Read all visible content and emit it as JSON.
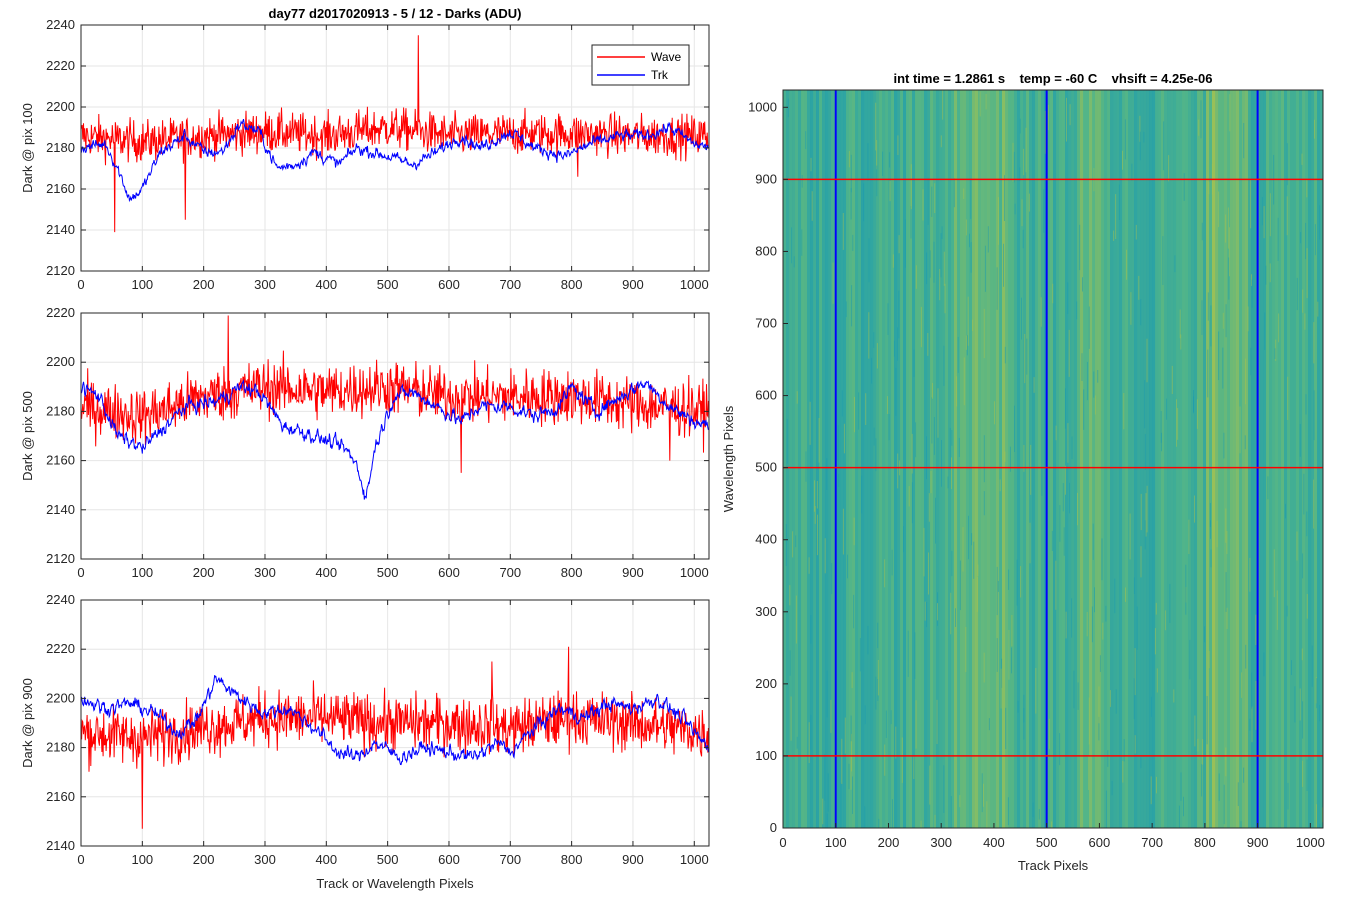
{
  "colors": {
    "wave": "#ff0000",
    "trk": "#0000ff",
    "grid": "#e6e6e6",
    "axis": "#262626",
    "image_low": "#1b9bb0",
    "image_mid": "#4fb48a",
    "image_high": "#a6c24f"
  },
  "chart_data": [
    {
      "type": "line",
      "title": "day77 d2017020913 - 5 / 12 - Darks (ADU)",
      "ylabel": "Dark @ pix 100",
      "xlabel": "",
      "xlim": [
        0,
        1024
      ],
      "ylim": [
        2120,
        2240
      ],
      "xticks": [
        0,
        100,
        200,
        300,
        400,
        500,
        600,
        700,
        800,
        900,
        1000
      ],
      "yticks": [
        2120,
        2140,
        2160,
        2180,
        2200,
        2220,
        2240
      ],
      "grid": true,
      "legend": {
        "position": "top-right",
        "entries": [
          "Wave",
          "Trk"
        ]
      },
      "series": [
        {
          "name": "Wave",
          "color": "#ff0000",
          "baseline": 2186,
          "noise": 8,
          "profile": [
            [
              0,
              2186
            ],
            [
              100,
              2183
            ],
            [
              200,
              2186
            ],
            [
              300,
              2188
            ],
            [
              400,
              2186
            ],
            [
              500,
              2190
            ],
            [
              600,
              2186
            ],
            [
              700,
              2187
            ],
            [
              800,
              2187
            ],
            [
              900,
              2186
            ],
            [
              1024,
              2186
            ]
          ],
          "highlights": [
            [
              55,
              2139
            ],
            [
              170,
              2145
            ],
            [
              550,
              2235
            ],
            [
              810,
              2166
            ]
          ]
        },
        {
          "name": "Trk",
          "color": "#0000ff",
          "noise": 4,
          "profile": [
            [
              0,
              2180
            ],
            [
              40,
              2182
            ],
            [
              60,
              2170
            ],
            [
              80,
              2155
            ],
            [
              100,
              2160
            ],
            [
              130,
              2178
            ],
            [
              170,
              2186
            ],
            [
              200,
              2178
            ],
            [
              230,
              2178
            ],
            [
              260,
              2192
            ],
            [
              290,
              2188
            ],
            [
              320,
              2170
            ],
            [
              350,
              2172
            ],
            [
              380,
              2178
            ],
            [
              420,
              2172
            ],
            [
              450,
              2180
            ],
            [
              500,
              2176
            ],
            [
              540,
              2172
            ],
            [
              580,
              2178
            ],
            [
              620,
              2186
            ],
            [
              650,
              2180
            ],
            [
              700,
              2188
            ],
            [
              740,
              2180
            ],
            [
              790,
              2176
            ],
            [
              830,
              2182
            ],
            [
              880,
              2186
            ],
            [
              920,
              2186
            ],
            [
              960,
              2190
            ],
            [
              1000,
              2182
            ],
            [
              1024,
              2180
            ]
          ]
        }
      ]
    },
    {
      "type": "line",
      "title": "",
      "ylabel": "Dark @ pix 500",
      "xlabel": "",
      "xlim": [
        0,
        1024
      ],
      "ylim": [
        2120,
        2220
      ],
      "xticks": [
        0,
        100,
        200,
        300,
        400,
        500,
        600,
        700,
        800,
        900,
        1000
      ],
      "yticks": [
        2120,
        2140,
        2160,
        2180,
        2200,
        2220
      ],
      "grid": true,
      "series": [
        {
          "name": "Wave",
          "color": "#ff0000",
          "noise": 9,
          "profile": [
            [
              0,
              2182
            ],
            [
              100,
              2178
            ],
            [
              200,
              2186
            ],
            [
              300,
              2190
            ],
            [
              400,
              2188
            ],
            [
              500,
              2190
            ],
            [
              600,
              2186
            ],
            [
              700,
              2186
            ],
            [
              800,
              2186
            ],
            [
              900,
              2183
            ],
            [
              1024,
              2180
            ]
          ],
          "highlights": [
            [
              240,
              2219
            ],
            [
              620,
              2155
            ],
            [
              960,
              2160
            ]
          ]
        },
        {
          "name": "Trk",
          "color": "#0000ff",
          "noise": 4,
          "profile": [
            [
              0,
              2190
            ],
            [
              30,
              2186
            ],
            [
              60,
              2170
            ],
            [
              100,
              2165
            ],
            [
              130,
              2172
            ],
            [
              170,
              2182
            ],
            [
              220,
              2184
            ],
            [
              260,
              2190
            ],
            [
              290,
              2188
            ],
            [
              330,
              2174
            ],
            [
              360,
              2172
            ],
            [
              400,
              2168
            ],
            [
              430,
              2165
            ],
            [
              450,
              2158
            ],
            [
              465,
              2145
            ],
            [
              480,
              2166
            ],
            [
              510,
              2186
            ],
            [
              540,
              2188
            ],
            [
              580,
              2182
            ],
            [
              620,
              2176
            ],
            [
              650,
              2182
            ],
            [
              700,
              2182
            ],
            [
              740,
              2178
            ],
            [
              780,
              2182
            ],
            [
              800,
              2190
            ],
            [
              840,
              2180
            ],
            [
              880,
              2186
            ],
            [
              920,
              2192
            ],
            [
              960,
              2182
            ],
            [
              1000,
              2176
            ],
            [
              1024,
              2174
            ]
          ]
        }
      ]
    },
    {
      "type": "line",
      "title": "",
      "ylabel": "Dark @ pix 900",
      "xlabel": "Track or Wavelength Pixels",
      "xlim": [
        0,
        1024
      ],
      "ylim": [
        2140,
        2240
      ],
      "xticks": [
        0,
        100,
        200,
        300,
        400,
        500,
        600,
        700,
        800,
        900,
        1000
      ],
      "yticks": [
        2140,
        2160,
        2180,
        2200,
        2220,
        2240
      ],
      "grid": true,
      "series": [
        {
          "name": "Wave",
          "color": "#ff0000",
          "noise": 9,
          "profile": [
            [
              0,
              2186
            ],
            [
              100,
              2184
            ],
            [
              200,
              2188
            ],
            [
              300,
              2192
            ],
            [
              400,
              2192
            ],
            [
              500,
              2190
            ],
            [
              600,
              2190
            ],
            [
              700,
              2188
            ],
            [
              800,
              2192
            ],
            [
              900,
              2190
            ],
            [
              1024,
              2186
            ]
          ],
          "highlights": [
            [
              100,
              2147
            ],
            [
              795,
              2221
            ],
            [
              670,
              2215
            ]
          ]
        },
        {
          "name": "Trk",
          "color": "#0000ff",
          "noise": 4,
          "profile": [
            [
              0,
              2200
            ],
            [
              40,
              2196
            ],
            [
              80,
              2198
            ],
            [
              120,
              2194
            ],
            [
              160,
              2186
            ],
            [
              190,
              2192
            ],
            [
              220,
              2208
            ],
            [
              260,
              2200
            ],
            [
              300,
              2194
            ],
            [
              340,
              2196
            ],
            [
              380,
              2188
            ],
            [
              420,
              2178
            ],
            [
              450,
              2176
            ],
            [
              480,
              2182
            ],
            [
              520,
              2176
            ],
            [
              560,
              2180
            ],
            [
              600,
              2178
            ],
            [
              640,
              2176
            ],
            [
              680,
              2182
            ],
            [
              700,
              2178
            ],
            [
              740,
              2188
            ],
            [
              780,
              2196
            ],
            [
              820,
              2192
            ],
            [
              860,
              2198
            ],
            [
              900,
              2196
            ],
            [
              940,
              2200
            ],
            [
              980,
              2192
            ],
            [
              1000,
              2186
            ],
            [
              1024,
              2180
            ]
          ]
        }
      ]
    },
    {
      "type": "heatmap",
      "title": "int time = 1.2861 s    temp = -60 C    vhsift = 4.25e-06",
      "xlabel": "Track Pixels",
      "ylabel": "Wavelength Pixels",
      "xlim": [
        0,
        1024
      ],
      "ylim": [
        0,
        1024
      ],
      "xticks": [
        0,
        100,
        200,
        300,
        400,
        500,
        600,
        700,
        800,
        900,
        1000
      ],
      "yticks": [
        0,
        100,
        200,
        300,
        400,
        500,
        600,
        700,
        800,
        900,
        1000
      ],
      "vertical_markers": {
        "color": "#0000ff",
        "x": [
          100,
          500,
          900
        ]
      },
      "horizontal_markers": {
        "color": "#ff0000",
        "y": [
          100,
          500,
          900
        ]
      },
      "bright_bands_x": [
        [
          320,
          440,
          0.6
        ],
        [
          560,
          620,
          0.45
        ],
        [
          800,
          880,
          0.8
        ]
      ]
    }
  ]
}
